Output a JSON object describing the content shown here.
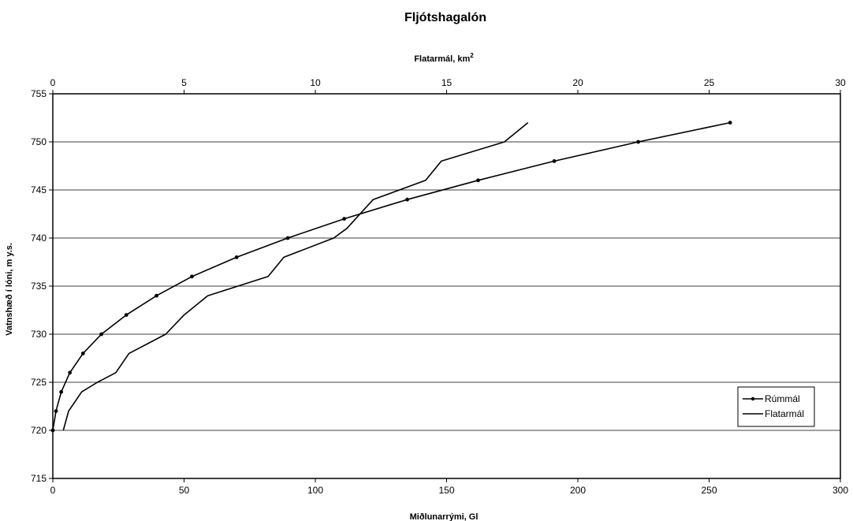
{
  "chart_data": {
    "type": "line",
    "title": "Fljótshagalón",
    "xlabel_bottom": "Miðlunarrými, Gl",
    "xlabel_top": "Flatarmál, km",
    "xlabel_top_superscript": "2",
    "ylabel": "Vatnshæð í lóni, m y.s.",
    "x_bottom_lim": [
      0,
      300
    ],
    "x_bottom_ticks": [
      0,
      50,
      100,
      150,
      200,
      250,
      300
    ],
    "x_top_lim": [
      0,
      30
    ],
    "x_top_ticks": [
      0,
      5,
      10,
      15,
      20,
      25,
      30
    ],
    "ylim": [
      715,
      755
    ],
    "y_ticks": [
      715,
      720,
      725,
      730,
      735,
      740,
      745,
      750,
      755
    ],
    "grid": "horizontal",
    "legend_position": "right",
    "series": [
      {
        "name": "Rúmmál",
        "axis": "bottom",
        "markers": true,
        "points": [
          [
            0,
            720
          ],
          [
            1.2,
            722
          ],
          [
            3.2,
            724
          ],
          [
            6.5,
            726
          ],
          [
            11.5,
            728
          ],
          [
            18.5,
            730
          ],
          [
            28,
            732
          ],
          [
            39.5,
            734
          ],
          [
            53,
            736
          ],
          [
            70,
            738
          ],
          [
            89.5,
            740
          ],
          [
            111,
            742
          ],
          [
            135,
            744
          ],
          [
            162,
            746
          ],
          [
            191,
            748
          ],
          [
            223,
            750
          ],
          [
            258,
            752
          ]
        ]
      },
      {
        "name": "Flatarmál",
        "axis": "top",
        "markers": false,
        "points": [
          [
            0.4,
            720
          ],
          [
            0.6,
            722
          ],
          [
            1.1,
            724
          ],
          [
            1.7,
            725
          ],
          [
            2.4,
            726
          ],
          [
            2.9,
            728
          ],
          [
            4.3,
            730
          ],
          [
            5.0,
            732
          ],
          [
            5.9,
            734
          ],
          [
            8.2,
            736
          ],
          [
            8.8,
            738
          ],
          [
            10.7,
            740
          ],
          [
            11.2,
            741
          ],
          [
            12.2,
            744
          ],
          [
            14.2,
            746
          ],
          [
            14.8,
            748
          ],
          [
            17.2,
            750
          ],
          [
            18.1,
            752
          ]
        ]
      }
    ]
  }
}
